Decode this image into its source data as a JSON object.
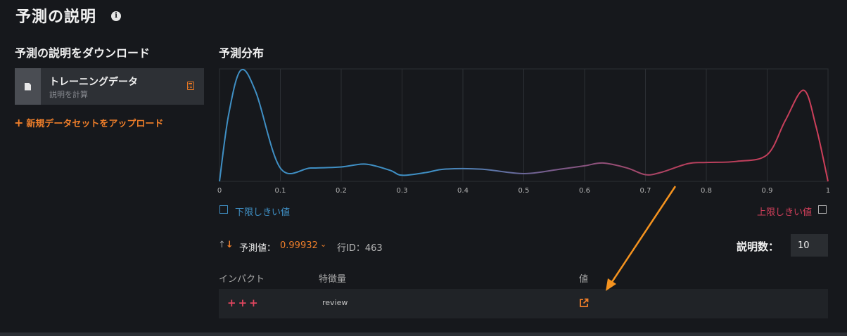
{
  "header": {
    "title": "予測の説明"
  },
  "download_section": {
    "title": "予測の説明をダウンロード",
    "dataset": {
      "name": "トレーニングデータ",
      "subtitle": "説明を計算"
    },
    "upload_label": "新規データセットをアップロード"
  },
  "distribution": {
    "title": "予測分布",
    "low_threshold_label": "下限しきい値",
    "high_threshold_label": "上限しきい値"
  },
  "chart_data": {
    "type": "line",
    "title": "",
    "xlabel": "",
    "ylabel": "",
    "xlim": [
      0,
      1
    ],
    "x_ticks": [
      "0",
      "0.1",
      "0.2",
      "0.3",
      "0.4",
      "0.5",
      "0.6",
      "0.7",
      "0.8",
      "0.9",
      "1"
    ],
    "grid": true,
    "series": [
      {
        "x": [
          0,
          0.015,
          0.035,
          0.06,
          0.1,
          0.15,
          0.2,
          0.24,
          0.28,
          0.3,
          0.34,
          0.37,
          0.43,
          0.5,
          0.56,
          0.6,
          0.63,
          0.67,
          0.7,
          0.725,
          0.77,
          0.8,
          0.85,
          0.9,
          0.93,
          0.96,
          0.98,
          1.0
        ],
        "y": [
          0,
          0.6,
          1.0,
          0.8,
          0.12,
          0.12,
          0.13,
          0.155,
          0.1,
          0.055,
          0.08,
          0.11,
          0.11,
          0.07,
          0.11,
          0.14,
          0.165,
          0.12,
          0.06,
          0.08,
          0.16,
          0.17,
          0.18,
          0.24,
          0.55,
          0.82,
          0.5,
          0.0
        ],
        "color_gradient": [
          "#3f8fc4",
          "#cf3f5a"
        ]
      }
    ]
  },
  "prediction": {
    "label": "予測値：",
    "value": "0.99932",
    "row_id": "行ID：463"
  },
  "explanations": {
    "label": "説明数：",
    "count": "10"
  },
  "table": {
    "headers": [
      "インパクト",
      "特徴量",
      "値"
    ],
    "rows": [
      {
        "impact": "+++",
        "feature": "review"
      }
    ]
  },
  "colors": {
    "accent": "#f07f2a",
    "low": "#3f8fc4",
    "high": "#cf3f5a"
  }
}
